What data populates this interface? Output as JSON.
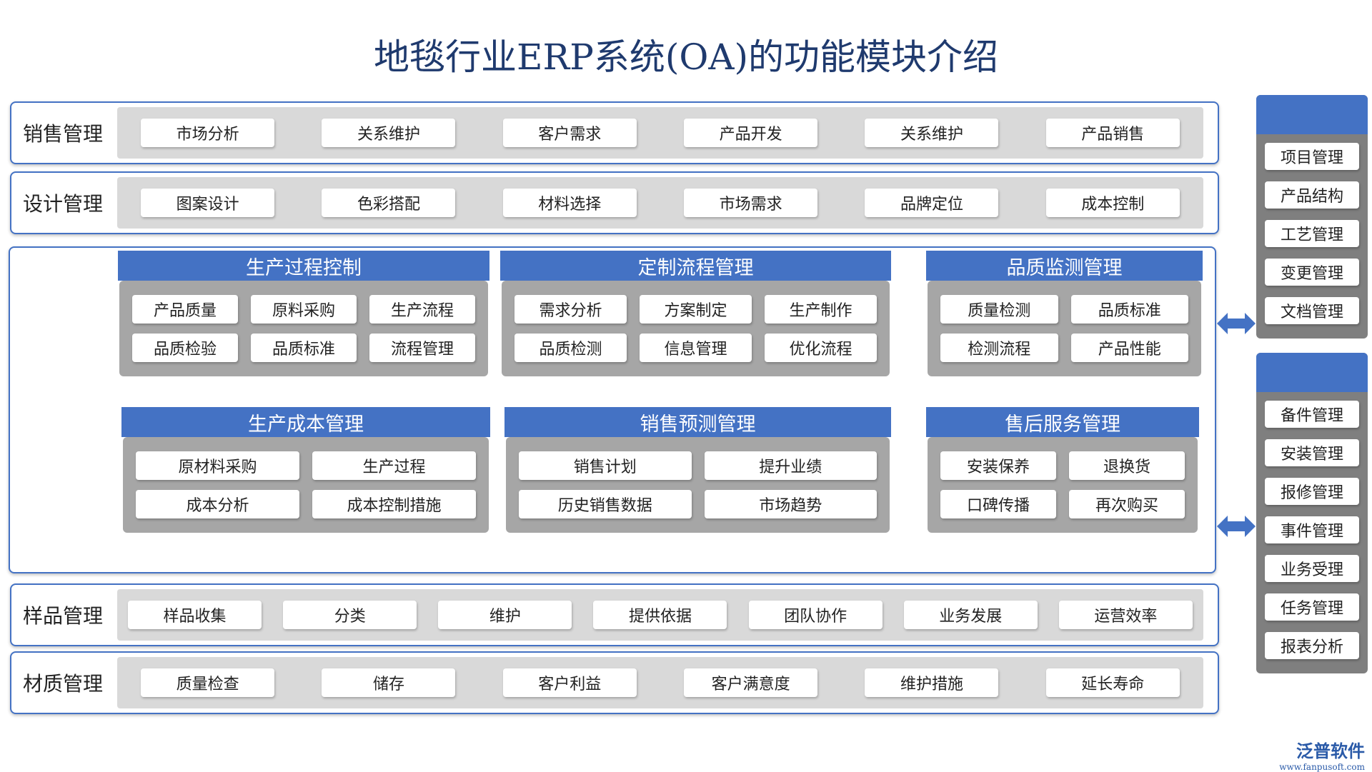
{
  "title": "地毯行业ERP系统(OA)的功能模块介绍",
  "top_rows": [
    {
      "label": "销售管理",
      "items": [
        "市场分析",
        "关系维护",
        "客户需求",
        "产品开发",
        "关系维护",
        "产品销售"
      ]
    },
    {
      "label": "设计管理",
      "items": [
        "图案设计",
        "色彩搭配",
        "材料选择",
        "市场需求",
        "品牌定位",
        "成本控制"
      ]
    }
  ],
  "modules": [
    {
      "title": "生产过程控制",
      "items": [
        "产品质量",
        "原料采购",
        "生产流程",
        "品质检验",
        "品质标准",
        "流程管理"
      ]
    },
    {
      "title": "定制流程管理",
      "items": [
        "需求分析",
        "方案制定",
        "生产制作",
        "品质检测",
        "信息管理",
        "优化流程"
      ]
    },
    {
      "title": "品质监测管理",
      "items": [
        "质量检测",
        "品质标准",
        "检测流程",
        "产品性能"
      ]
    },
    {
      "title": "生产成本管理",
      "items": [
        "原材料采购",
        "生产过程",
        "成本分析",
        "成本控制措施"
      ]
    },
    {
      "title": "销售预测管理",
      "items": [
        "销售计划",
        "提升业绩",
        "历史销售数据",
        "市场趋势"
      ]
    },
    {
      "title": "售后服务管理",
      "items": [
        "安装保养",
        "退换货",
        "口碑传播",
        "再次购买"
      ]
    }
  ],
  "bottom_rows": [
    {
      "label": "样品管理",
      "items": [
        "样品收集",
        "分类",
        "维护",
        "提供依据",
        "团队协作",
        "业务发展",
        "运营效率"
      ]
    },
    {
      "label": "材质管理",
      "items": [
        "质量检查",
        "储存",
        "客户利益",
        "客户满意度",
        "维护措施",
        "延长寿命"
      ]
    }
  ],
  "side_panels": [
    {
      "items": [
        "项目管理",
        "产品结构",
        "工艺管理",
        "变更管理",
        "文档管理"
      ]
    },
    {
      "items": [
        "备件管理",
        "安装管理",
        "报修管理",
        "事件管理",
        "业务受理",
        "任务管理",
        "报表分析"
      ]
    }
  ],
  "logo": {
    "name": "泛普软件",
    "url": "www.fanpusoft.com"
  }
}
